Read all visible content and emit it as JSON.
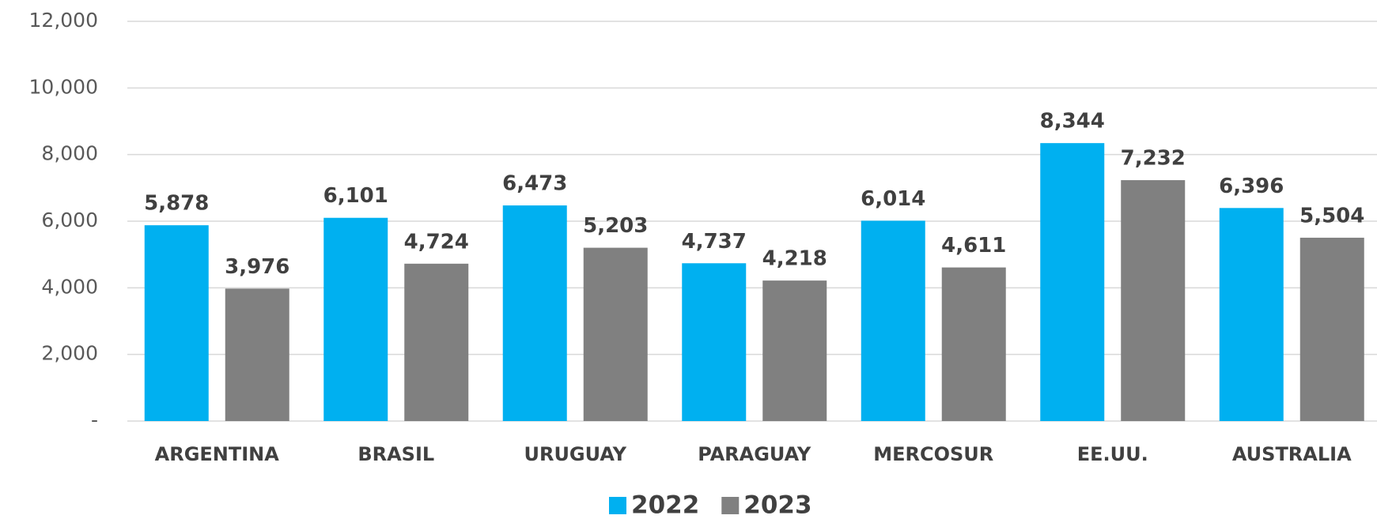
{
  "chart_data": {
    "type": "bar",
    "categories": [
      "ARGENTINA",
      "BRASIL",
      "URUGUAY",
      "PARAGUAY",
      "MERCOSUR",
      "EE.UU.",
      "AUSTRALIA"
    ],
    "series": [
      {
        "name": "2022",
        "color": "#00b0f0",
        "values": [
          5878,
          6101,
          6473,
          4737,
          6014,
          8344,
          6396
        ],
        "value_labels": [
          "5,878",
          "6,101",
          "6,473",
          "4,737",
          "6,014",
          "8,344",
          "6,396"
        ]
      },
      {
        "name": "2023",
        "color": "#808080",
        "values": [
          3976,
          4724,
          5203,
          4218,
          4611,
          7232,
          5504
        ],
        "value_labels": [
          "3,976",
          "4,724",
          "5,203",
          "4,218",
          "4,611",
          "7,232",
          "5,504"
        ]
      }
    ],
    "ylim": [
      0,
      12000
    ],
    "yticks": [
      {
        "value": 0,
        "label": "-"
      },
      {
        "value": 2000,
        "label": "2,000"
      },
      {
        "value": 4000,
        "label": "4,000"
      },
      {
        "value": 6000,
        "label": "6,000"
      },
      {
        "value": 8000,
        "label": "8,000"
      },
      {
        "value": 10000,
        "label": "10,000"
      },
      {
        "value": 12000,
        "label": "12,000"
      }
    ],
    "grid": true,
    "legend": "bottom"
  }
}
